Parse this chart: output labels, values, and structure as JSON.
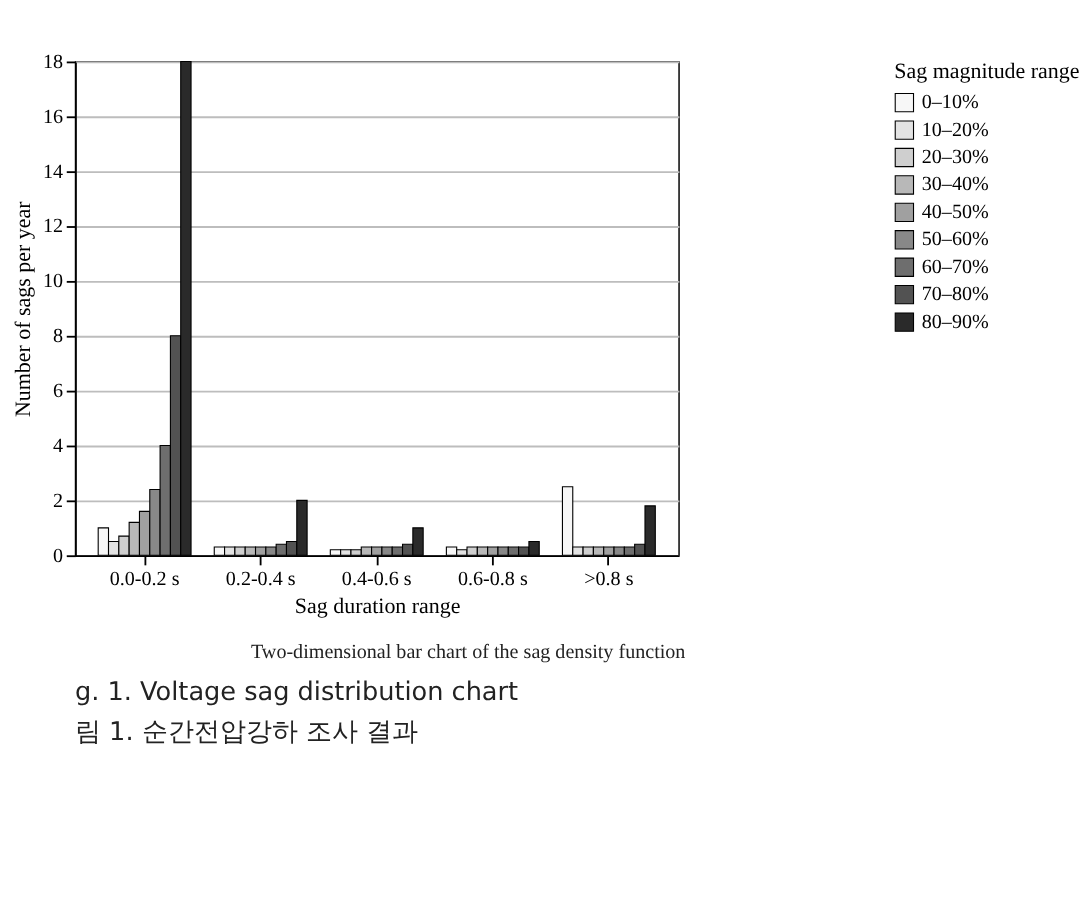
{
  "chart_data": {
    "type": "bar",
    "categories": [
      "0.0-0.2 s",
      "0.2-0.4 s",
      "0.4-0.6 s",
      "0.6-0.8 s",
      ">0.8 s"
    ],
    "xlabel": "Sag duration range",
    "ylabel": "Number of sags per year",
    "legend_title": "Sag magnitude range",
    "ylim": [
      0,
      18
    ],
    "yticks": [
      0,
      2,
      4,
      6,
      8,
      10,
      12,
      14,
      16,
      18
    ],
    "grid": "y",
    "legend": "right",
    "series": [
      {
        "name": "0–10%",
        "color": "#f7f7f7",
        "values": [
          1,
          0.3,
          0.2,
          0.3,
          2.5
        ]
      },
      {
        "name": "10–20%",
        "color": "#e3e3e3",
        "values": [
          0.5,
          0.3,
          0.2,
          0.2,
          0.3
        ]
      },
      {
        "name": "20–30%",
        "color": "#cfcfcf",
        "values": [
          0.7,
          0.3,
          0.2,
          0.3,
          0.3
        ]
      },
      {
        "name": "30–40%",
        "color": "#b8b8b8",
        "values": [
          1.2,
          0.3,
          0.3,
          0.3,
          0.3
        ]
      },
      {
        "name": "40–50%",
        "color": "#a0a0a0",
        "values": [
          1.6,
          0.3,
          0.3,
          0.3,
          0.3
        ]
      },
      {
        "name": "50–60%",
        "color": "#888888",
        "values": [
          2.4,
          0.3,
          0.3,
          0.3,
          0.3
        ]
      },
      {
        "name": "60–70%",
        "color": "#6e6e6e",
        "values": [
          4,
          0.4,
          0.3,
          0.3,
          0.3
        ]
      },
      {
        "name": "70–80%",
        "color": "#525252",
        "values": [
          8,
          0.5,
          0.4,
          0.3,
          0.4
        ]
      },
      {
        "name": "80–90%",
        "color": "#2a2a2a",
        "values": [
          18,
          2,
          1,
          0.5,
          1.8
        ]
      }
    ],
    "annotations": [
      "Two-dimensional bar chart of the sag density function",
      "g. 1. Voltage sag distribution chart",
      "림 1. 순간전압강하 조사 결과"
    ]
  }
}
